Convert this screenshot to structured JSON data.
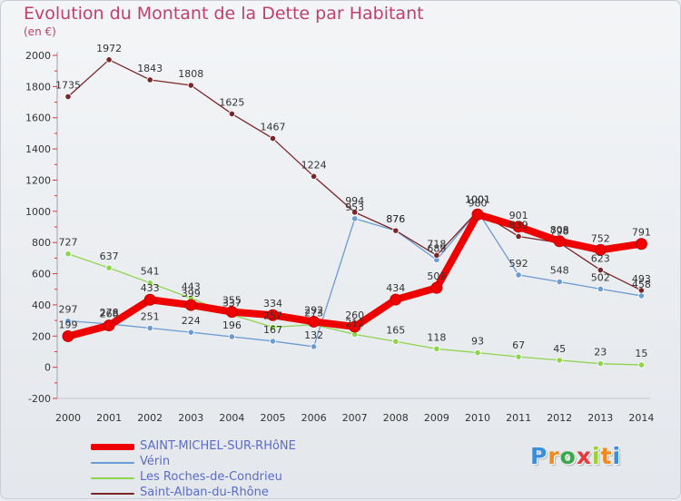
{
  "title": "Evolution du Montant de la Dette par Habitant",
  "unit_label": "(en €)",
  "logo": {
    "text": "Proxiti",
    "colors": [
      "#3a8fd8",
      "#f08a1c",
      "#3aa84a",
      "#e23b3b",
      "#9ad12e",
      "#f08a1c",
      "#3a8fd8"
    ]
  },
  "chart_data": {
    "type": "line",
    "title": "Evolution du Montant de la Dette par Habitant",
    "ylabel": "(en €)",
    "xlabel": "",
    "x": [
      "2000",
      "2001",
      "2002",
      "2003",
      "2004",
      "2005",
      "2006",
      "2007",
      "2008",
      "2009",
      "2010",
      "2011",
      "2012",
      "2013",
      "2014"
    ],
    "ylim": [
      -200,
      2000
    ],
    "yticks": [
      -200,
      0,
      200,
      400,
      600,
      800,
      1000,
      1200,
      1400,
      1600,
      1800,
      2000
    ],
    "grid": false,
    "legend_position": "bottom-left",
    "series": [
      {
        "name": "SAINT-MICHEL-SUR-RHôNE",
        "color": "#ee0000",
        "values": [
          199,
          268,
          433,
          399,
          355,
          334,
          292,
          260,
          434,
          509,
          980,
          901,
          808,
          752,
          791
        ],
        "labels": [
          "199",
          "268",
          "433",
          "399",
          "355",
          "334",
          "292",
          "260",
          "434",
          "509",
          "980",
          "901",
          "808",
          "752",
          "791"
        ]
      },
      {
        "name": "Vérin",
        "color": "#6a9bd3",
        "values": [
          297,
          278,
          251,
          224,
          196,
          167,
          132,
          953,
          876,
          689,
          1001,
          592,
          548,
          502,
          458
        ],
        "labels": [
          "297",
          "278",
          "251",
          "224",
          "196",
          "167",
          "132",
          "953",
          "876",
          "689",
          "1001",
          "592",
          "548",
          "502",
          "458"
        ]
      },
      {
        "name": "Les Roches-de-Condrieu",
        "color": "#8ed44e",
        "values": [
          727,
          637,
          541,
          443,
          337,
          257,
          273,
          211,
          165,
          118,
          93,
          67,
          45,
          23,
          15
        ],
        "labels": [
          "727",
          "637",
          "541",
          "443",
          "337",
          "257",
          "273",
          "211",
          "165",
          "118",
          "93",
          "67",
          "45",
          "23",
          "15"
        ]
      },
      {
        "name": "Saint-Alban-du-Rhône",
        "color": "#7a2628",
        "values": [
          1735,
          1972,
          1843,
          1808,
          1625,
          1467,
          1224,
          994,
          876,
          718,
          1001,
          839,
          798,
          623,
          493
        ],
        "labels": [
          "1735",
          "1972",
          "1843",
          "1808",
          "1625",
          "1467",
          "1224",
          "994",
          "876",
          "718",
          "1001",
          "839",
          "798",
          "623",
          "493"
        ]
      }
    ]
  }
}
